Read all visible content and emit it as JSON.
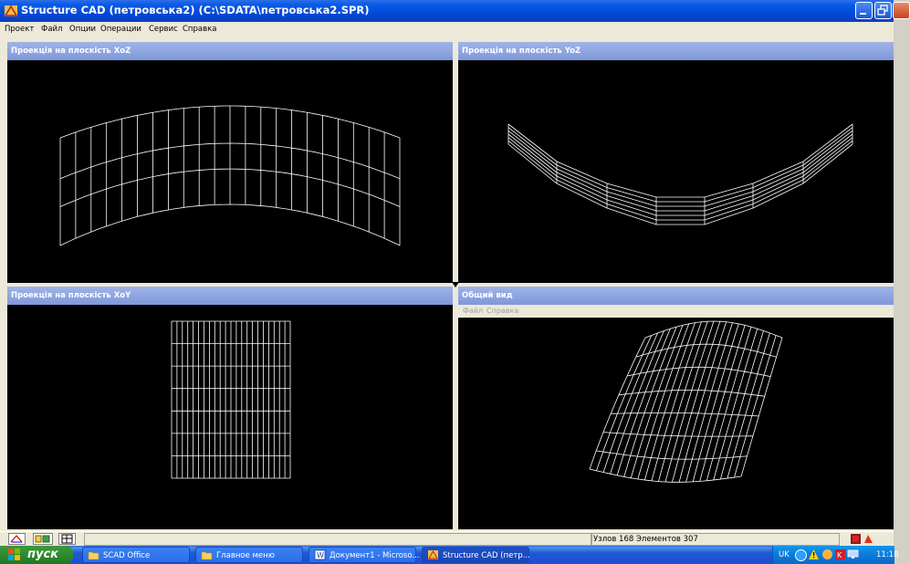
{
  "window": {
    "title": "Structure CAD (петровська2) (C:\\SDATA\\петровська2.SPR)"
  },
  "menubar": {
    "items": [
      "Проект",
      "Файл",
      "Опции",
      "Операции",
      "Сервис",
      "Справка"
    ]
  },
  "panes": {
    "xoz": {
      "title": "Проекція на плоскість XoZ"
    },
    "yoz": {
      "title": "Проекція на плоскість YoZ"
    },
    "xoy": {
      "title": "Проекція на плоскість XoY"
    },
    "general": {
      "title": "Общий вид",
      "menu": [
        "Файл",
        "Справка"
      ]
    }
  },
  "statusbar": {
    "text": "Узлов 168 Элементов 307"
  },
  "taskbar": {
    "start_label": "пуск",
    "tasks": [
      {
        "label": "SCAD Office",
        "icon": "folder-icon"
      },
      {
        "label": "Главное меню",
        "icon": "folder-icon"
      },
      {
        "label": "Документ1 - Microso...",
        "icon": "word-icon"
      },
      {
        "label": "Structure CAD (петр...",
        "icon": "scad-icon"
      }
    ],
    "tray": {
      "language": "UK",
      "time": "11:18"
    }
  },
  "colors": {
    "title_blue": "#0a5ce6",
    "pane_title": "#8aa2de",
    "canvas": "#000000",
    "mesh": "#ffffff"
  }
}
